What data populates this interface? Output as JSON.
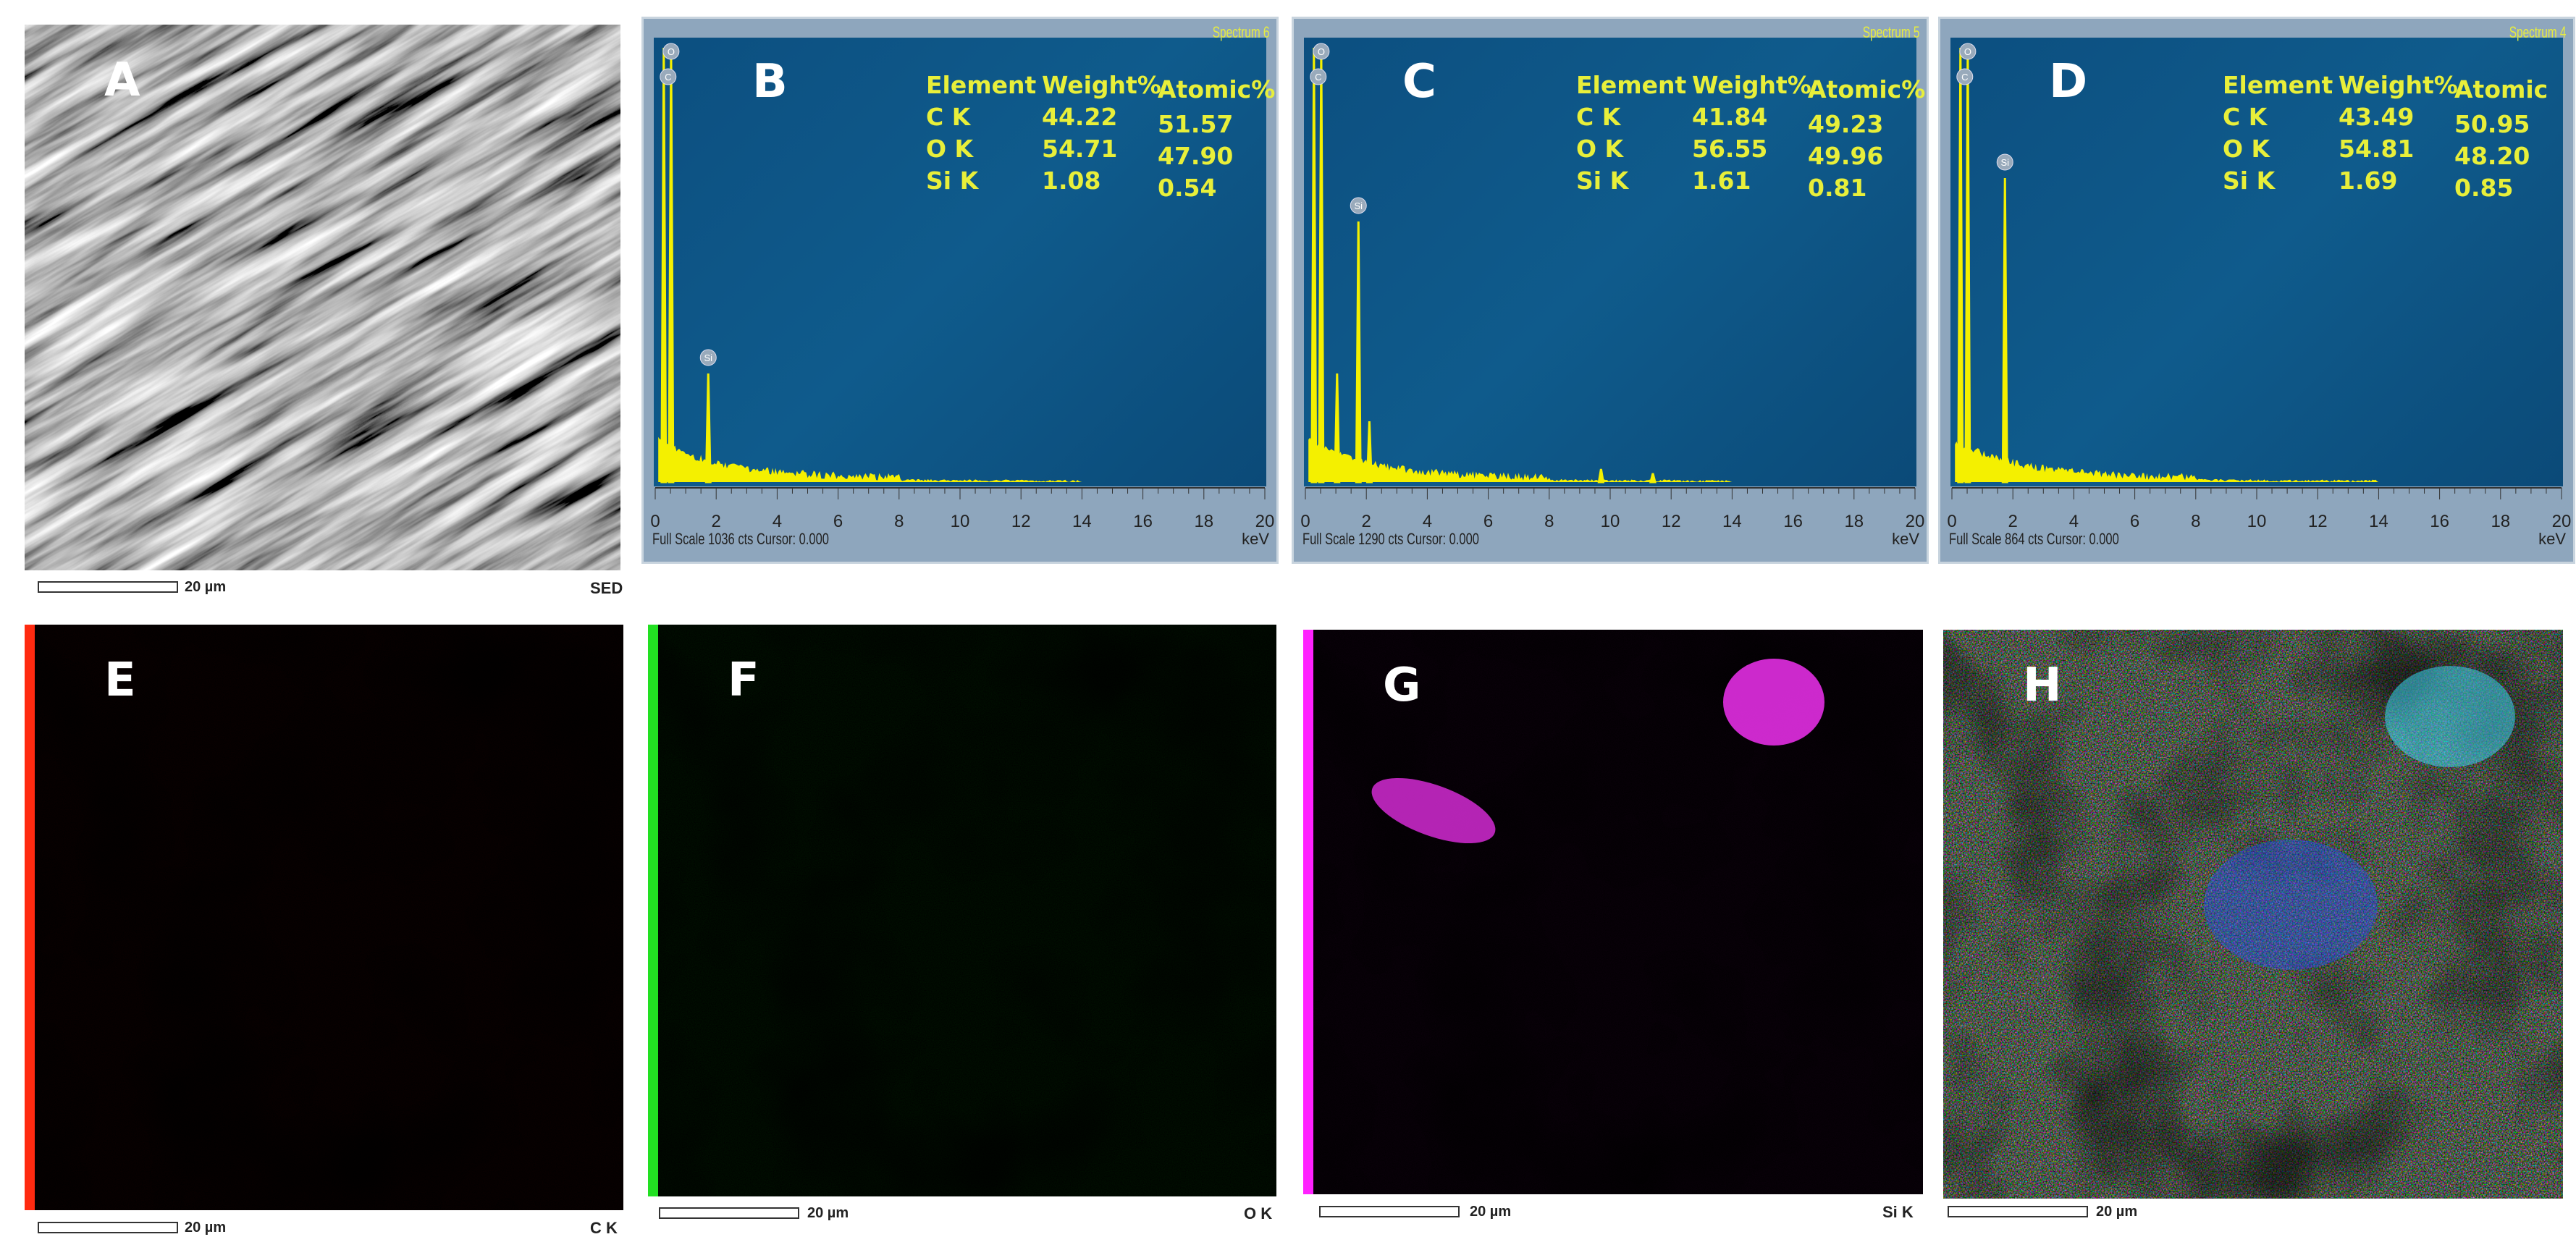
{
  "panels": {
    "A": {
      "letter": "A",
      "scale": "20 µm",
      "tag": "SED"
    },
    "B": {
      "letter": "B",
      "spectrum": "Spectrum 6",
      "footer": "Full Scale 1036 cts Cursor: 0.000",
      "unit": "keV",
      "headers": [
        "Element",
        "Weight%",
        "Atomic%"
      ],
      "rows": [
        [
          "C K",
          "44.22",
          "51.57"
        ],
        [
          "O K",
          "54.71",
          "47.90"
        ],
        [
          "Si K",
          "1.08",
          "0.54"
        ]
      ]
    },
    "C": {
      "letter": "C",
      "spectrum": "Spectrum 5",
      "footer": "Full Scale 1290 cts Cursor: 0.000",
      "unit": "keV",
      "headers": [
        "Element",
        "Weight%",
        "Atomic%"
      ],
      "rows": [
        [
          "C K",
          "41.84",
          "49.23"
        ],
        [
          "O K",
          "56.55",
          "49.96"
        ],
        [
          "Si K",
          "1.61",
          "0.81"
        ]
      ]
    },
    "D": {
      "letter": "D",
      "spectrum": "Spectrum 4",
      "footer": "Full Scale 864 cts Cursor: 0.000",
      "unit": "keV",
      "headers": [
        "Element",
        "Weight%",
        "Atomic"
      ],
      "rows": [
        [
          "C K",
          "43.49",
          "50.95"
        ],
        [
          "O K",
          "54.81",
          "48.20"
        ],
        [
          "Si K",
          "1.69",
          "0.85"
        ]
      ]
    },
    "E": {
      "letter": "E",
      "scale": "20 µm",
      "tag": "C K",
      "color": "#ff2a10"
    },
    "F": {
      "letter": "F",
      "scale": "20 µm",
      "tag": "O K",
      "color": "#22e022"
    },
    "G": {
      "letter": "G",
      "scale": "20 µm",
      "tag": "Si K",
      "color": "#ff22ff"
    },
    "H": {
      "letter": "H",
      "scale": "20 µm",
      "tag": ""
    }
  },
  "chart_data": [
    {
      "type": "line",
      "panel": "B",
      "xlim": [
        0,
        20
      ],
      "xticks": [
        "0",
        "2",
        "4",
        "6",
        "8",
        "10",
        "12",
        "14",
        "16",
        "18",
        "20"
      ],
      "xlabel": "keV",
      "peak_labels": [
        "O",
        "C",
        "Si"
      ],
      "peaks": [
        [
          0.28,
          1.0
        ],
        [
          0.52,
          1.0
        ],
        [
          1.74,
          0.25
        ]
      ]
    },
    {
      "type": "line",
      "panel": "C",
      "xlim": [
        0,
        20
      ],
      "xticks": [
        "0",
        "2",
        "4",
        "6",
        "8",
        "10",
        "12",
        "14",
        "16",
        "18",
        "20"
      ],
      "xlabel": "keV",
      "peak_labels": [
        "O",
        "C",
        "Si"
      ],
      "peaks": [
        [
          0.28,
          1.0
        ],
        [
          0.52,
          1.0
        ],
        [
          1.04,
          0.25
        ],
        [
          1.74,
          0.6
        ],
        [
          2.1,
          0.14
        ],
        [
          9.7,
          0.03
        ],
        [
          11.4,
          0.02
        ]
      ]
    },
    {
      "type": "line",
      "panel": "D",
      "xlim": [
        0,
        20
      ],
      "xticks": [
        "0",
        "2",
        "4",
        "6",
        "8",
        "10",
        "12",
        "14",
        "16",
        "18",
        "20"
      ],
      "xlabel": "keV",
      "peak_labels": [
        "O",
        "C",
        "Si"
      ],
      "peaks": [
        [
          0.28,
          1.0
        ],
        [
          0.52,
          1.0
        ],
        [
          1.74,
          0.7
        ]
      ]
    }
  ]
}
